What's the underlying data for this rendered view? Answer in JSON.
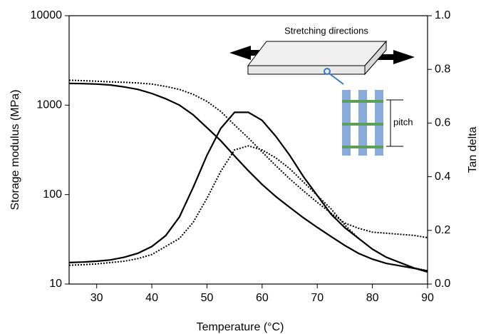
{
  "chart_data": {
    "type": "line",
    "x_label": "Temperature (°C)",
    "y_label": "Storage modulus (MPa)",
    "y2_label": "Tan delta",
    "annotations": [
      "Stretching directions",
      "pitch"
    ],
    "x": [
      25,
      27.5,
      30,
      32.5,
      35,
      37.5,
      40,
      42.5,
      45,
      47.5,
      50,
      52.5,
      55,
      57.5,
      60,
      62.5,
      65,
      67.5,
      70,
      72.5,
      75,
      77.5,
      80,
      82.5,
      85,
      87.5,
      90
    ],
    "xlim": [
      25,
      90
    ],
    "xticks": [
      30,
      40,
      50,
      60,
      70,
      80,
      90
    ],
    "ylim": [
      10,
      10000
    ],
    "yticks": [
      10,
      100,
      1000,
      10000
    ],
    "yscale": "log",
    "y2lim": [
      0,
      1
    ],
    "y2ticks": [
      {
        "value": 0,
        "label": "0.0"
      },
      0.2,
      0.4,
      0.6,
      0.8,
      {
        "value": 1,
        "label": "1.0"
      }
    ],
    "series": [
      {
        "color": "#000000",
        "style": "solid",
        "axis": "y",
        "values": [
          1750,
          1740,
          1720,
          1680,
          1600,
          1500,
          1350,
          1180,
          1000,
          780,
          560,
          400,
          270,
          185,
          130,
          95,
          72,
          55,
          43,
          34,
          27,
          22,
          19,
          17,
          16,
          15,
          14
        ]
      },
      {
        "color": "#000000",
        "style": "dotted",
        "axis": "y",
        "values": [
          1900,
          1880,
          1850,
          1820,
          1800,
          1770,
          1720,
          1620,
          1500,
          1320,
          1100,
          850,
          600,
          430,
          300,
          210,
          150,
          110,
          82,
          62,
          48,
          42,
          38,
          37,
          36,
          35,
          33
        ]
      },
      {
        "color": "#000000",
        "style": "solid",
        "axis": "y2",
        "values": [
          0.08,
          0.082,
          0.085,
          0.09,
          0.1,
          0.115,
          0.14,
          0.18,
          0.25,
          0.36,
          0.48,
          0.58,
          0.64,
          0.64,
          0.61,
          0.55,
          0.48,
          0.4,
          0.33,
          0.26,
          0.21,
          0.17,
          0.13,
          0.1,
          0.08,
          0.06,
          0.045
        ]
      },
      {
        "color": "#000000",
        "style": "dotted",
        "axis": "y2",
        "values": [
          0.07,
          0.072,
          0.075,
          0.08,
          0.085,
          0.095,
          0.11,
          0.14,
          0.17,
          0.23,
          0.32,
          0.42,
          0.5,
          0.515,
          0.5,
          0.47,
          0.43,
          0.38,
          0.33,
          0.28,
          0.22,
          0.17,
          0.13,
          0.1,
          0.08,
          0.06,
          0.05
        ]
      }
    ]
  }
}
